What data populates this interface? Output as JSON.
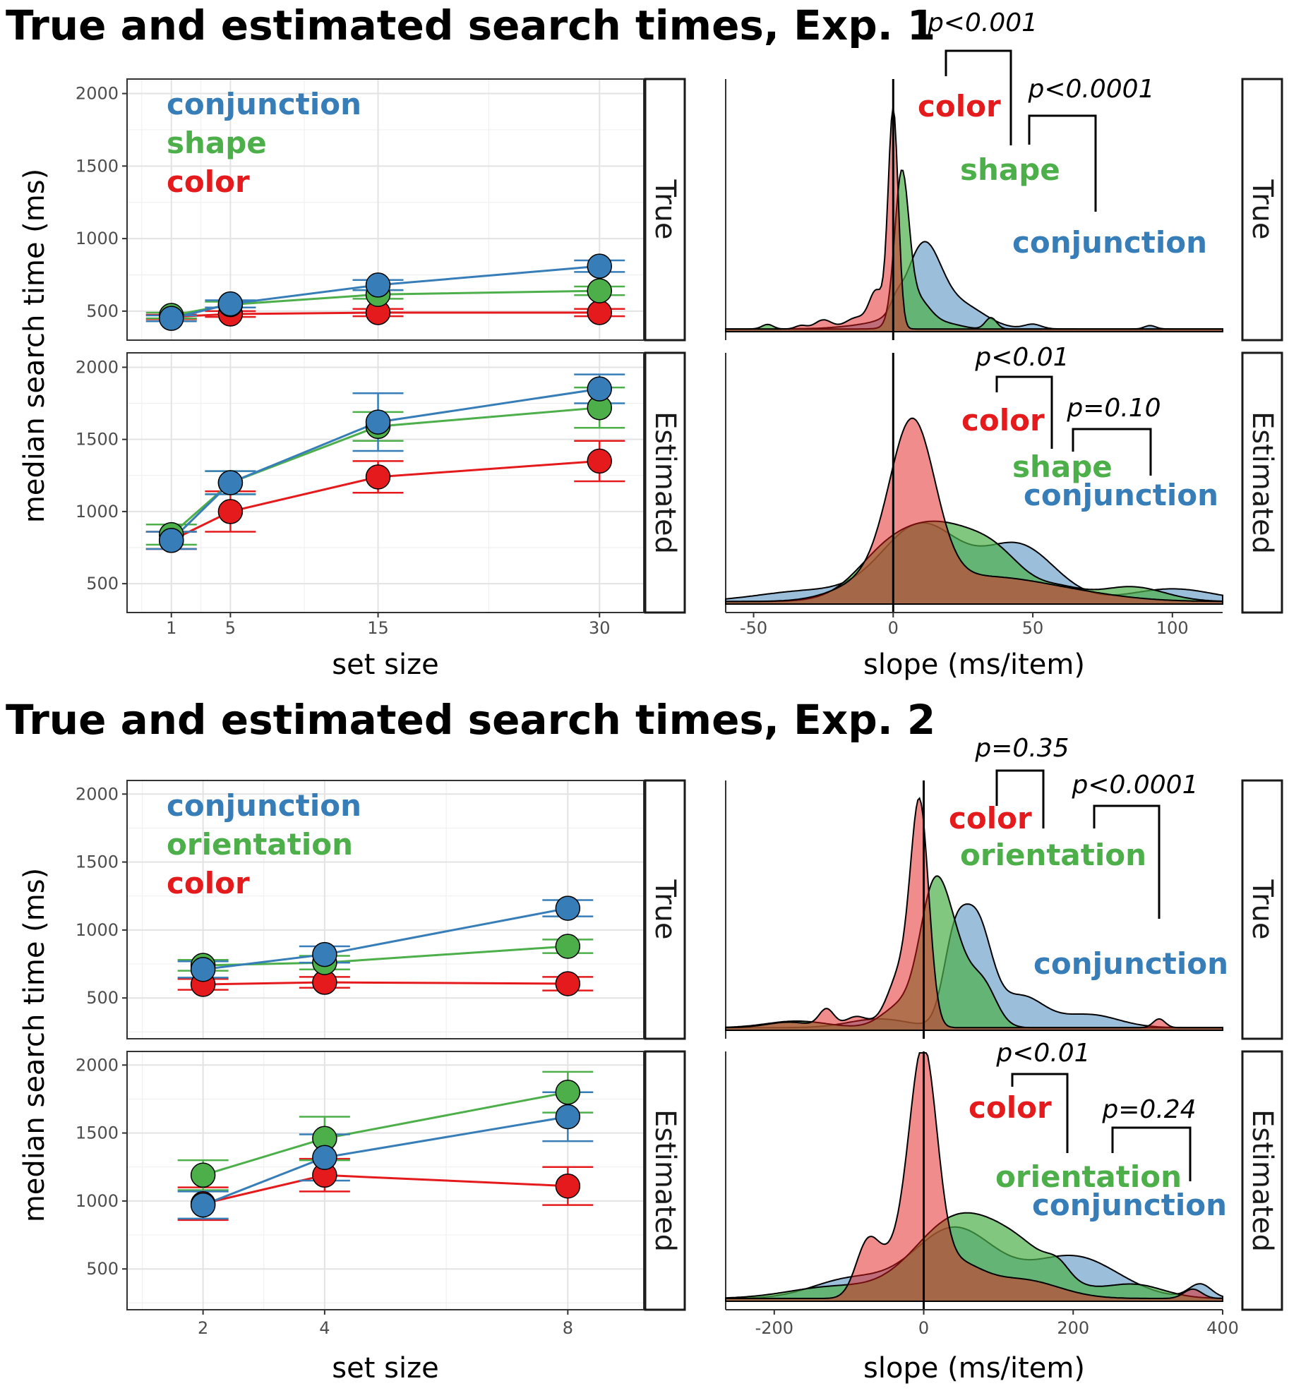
{
  "colors": {
    "conjunction": "#377eb8",
    "shape": "#4daf4a",
    "orientation": "#4daf4a",
    "color": "#e41a1c"
  },
  "chart_data": [
    {
      "type": "line",
      "title": "True and estimated search times, Exp. 1",
      "xlabel": "set size",
      "ylabel": "median search time (ms)",
      "x_ticks": [
        1,
        5,
        15,
        30
      ],
      "y_ticks": [
        500,
        1000,
        1500,
        2000
      ],
      "xlim": [
        -2,
        33
      ],
      "ylim": [
        300,
        2100
      ],
      "legend_placement": "top-left",
      "legend": [
        "conjunction",
        "shape",
        "color"
      ],
      "panels": [
        {
          "strip": "True",
          "x": [
            1,
            5,
            15,
            30
          ],
          "series": [
            {
              "name": "conjunction",
              "values": [
                450,
                550,
                680,
                810
              ],
              "err": [
                20,
                25,
                35,
                40
              ]
            },
            {
              "name": "shape",
              "values": [
                470,
                545,
                615,
                640
              ],
              "err": [
                20,
                20,
                30,
                30
              ]
            },
            {
              "name": "color",
              "values": [
                460,
                480,
                490,
                490
              ],
              "err": [
                15,
                20,
                25,
                25
              ]
            }
          ]
        },
        {
          "strip": "Estimated",
          "x": [
            1,
            5,
            15,
            30
          ],
          "series": [
            {
              "name": "conjunction",
              "values": [
                800,
                1200,
                1620,
                1850
              ],
              "err": [
                60,
                80,
                200,
                100
              ]
            },
            {
              "name": "shape",
              "values": [
                840,
                1200,
                1590,
                1720
              ],
              "err": [
                70,
                80,
                100,
                140
              ]
            },
            {
              "name": "color",
              "values": [
                800,
                1000,
                1240,
                1350
              ],
              "err": [
                60,
                140,
                110,
                140
              ]
            }
          ]
        }
      ]
    },
    {
      "type": "area",
      "xlabel": "slope (ms/item)",
      "x_ticks": [
        -50,
        0,
        50,
        100
      ],
      "xlim": [
        -60,
        118
      ],
      "legend": [
        "color",
        "shape",
        "conjunction"
      ],
      "panels": [
        {
          "strip": "True",
          "series": [
            {
              "name": "conjunction",
              "peaks": [
                [
                  1,
                  0.04,
                  2
                ],
                [
                  11,
                  0.32,
                  6
                ],
                [
                  25,
                  0.08,
                  8
                ],
                [
                  8,
                  0.05,
                  15
                ],
                [
                  50,
                  0.02,
                  3
                ],
                [
                  92,
                  0.015,
                  2
                ]
              ]
            },
            {
              "name": "shape",
              "peaks": [
                [
                  3,
                  0.62,
                  2.5
                ],
                [
                  8,
                  0.14,
                  5
                ],
                [
                  35,
                  0.05,
                  2
                ],
                [
                  -45,
                  0.02,
                  2
                ],
                [
                  20,
                  0.02,
                  5
                ]
              ]
            },
            {
              "name": "color",
              "peaks": [
                [
                  0,
                  0.97,
                  1.8
                ],
                [
                  -6,
                  0.16,
                  2.5
                ],
                [
                  -25,
                  0.04,
                  3
                ],
                [
                  -13,
                  0.05,
                  4
                ],
                [
                  -33,
                  0.015,
                  2
                ]
              ]
            }
          ],
          "annotations": [
            {
              "text": "p<0.001"
            },
            {
              "text": "p<0.0001"
            }
          ]
        },
        {
          "strip": "Estimated",
          "series": [
            {
              "name": "conjunction",
              "peaks": [
                [
                  10,
                  0.36,
                  14
                ],
                [
                  45,
                  0.26,
                  13
                ],
                [
                  -30,
                  0.05,
                  18
                ],
                [
                  100,
                  0.06,
                  15
                ]
              ]
            },
            {
              "name": "shape",
              "peaks": [
                [
                  15,
                  0.36,
                  17
                ],
                [
                  38,
                  0.12,
                  10
                ],
                [
                  -5,
                  0.08,
                  10
                ],
                [
                  85,
                  0.07,
                  12
                ],
                [
                  60,
                  0.05,
                  8
                ]
              ]
            },
            {
              "name": "color",
              "peaks": [
                [
                  7,
                  0.72,
                  8
                ],
                [
                  -3,
                  0.12,
                  14
                ],
                [
                  30,
                  0.1,
                  20
                ],
                [
                  60,
                  0.04,
                  20
                ]
              ]
            }
          ],
          "annotations": [
            {
              "text": "p<0.01"
            },
            {
              "text": "p=0.10"
            }
          ]
        }
      ]
    },
    {
      "type": "line",
      "title": "True and estimated search times, Exp. 2",
      "xlabel": "set size",
      "ylabel": "median search time (ms)",
      "x_ticks": [
        2,
        4,
        8
      ],
      "y_ticks": [
        500,
        1000,
        1500,
        2000
      ],
      "xlim": [
        0.75,
        9.25
      ],
      "ylim": [
        200,
        2100
      ],
      "legend_placement": "top-left",
      "legend": [
        "conjunction",
        "orientation",
        "color"
      ],
      "panels": [
        {
          "strip": "True",
          "x": [
            2,
            4,
            8
          ],
          "series": [
            {
              "name": "conjunction",
              "values": [
                710,
                820,
                1160
              ],
              "err": [
                60,
                60,
                60
              ]
            },
            {
              "name": "orientation",
              "values": [
                740,
                760,
                880
              ],
              "err": [
                40,
                50,
                50
              ]
            },
            {
              "name": "color",
              "values": [
                600,
                615,
                605
              ],
              "err": [
                40,
                40,
                50
              ]
            }
          ]
        },
        {
          "strip": "Estimated",
          "x": [
            2,
            4,
            8
          ],
          "series": [
            {
              "name": "conjunction",
              "values": [
                970,
                1320,
                1620
              ],
              "err": [
                100,
                170,
                180
              ]
            },
            {
              "name": "orientation",
              "values": [
                1190,
                1460,
                1800
              ],
              "err": [
                110,
                160,
                150
              ]
            },
            {
              "name": "color",
              "values": [
                980,
                1190,
                1110
              ],
              "err": [
                120,
                120,
                140
              ]
            }
          ]
        }
      ]
    },
    {
      "type": "area",
      "xlabel": "slope (ms/item)",
      "x_ticks": [
        -200,
        0,
        200,
        400
      ],
      "xlim": [
        -265,
        400
      ],
      "legend": [
        "color",
        "orientation",
        "conjunction"
      ],
      "panels": [
        {
          "strip": "True",
          "series": [
            {
              "name": "conjunction",
              "peaks": [
                [
                  40,
                  0.32,
                  15
                ],
                [
                  70,
                  0.48,
                  20
                ],
                [
                  130,
                  0.14,
                  30
                ],
                [
                  220,
                  0.06,
                  40
                ],
                [
                  -60,
                  0.04,
                  40
                ]
              ]
            },
            {
              "name": "orientation",
              "peaks": [
                [
                  10,
                  0.42,
                  18
                ],
                [
                  35,
                  0.4,
                  22
                ],
                [
                  -30,
                  0.1,
                  25
                ],
                [
                  80,
                  0.18,
                  18
                ],
                [
                  -170,
                  0.03,
                  40
                ]
              ]
            },
            {
              "name": "color",
              "peaks": [
                [
                  -5,
                  0.95,
                  12
                ],
                [
                  -30,
                  0.25,
                  18
                ],
                [
                  -130,
                  0.08,
                  10
                ],
                [
                  -90,
                  0.05,
                  15
                ],
                [
                  -180,
                  0.025,
                  30
                ],
                [
                  315,
                  0.04,
                  8
                ]
              ]
            }
          ],
          "annotations": [
            {
              "text": "p=0.35"
            },
            {
              "text": "p<0.0001"
            }
          ]
        },
        {
          "strip": "Estimated",
          "series": [
            {
              "name": "conjunction",
              "peaks": [
                [
                  40,
                  0.3,
                  55
                ],
                [
                  200,
                  0.18,
                  60
                ],
                [
                  -100,
                  0.08,
                  50
                ],
                [
                  370,
                  0.06,
                  15
                ]
              ]
            },
            {
              "name": "orientation",
              "peaks": [
                [
                  40,
                  0.32,
                  55
                ],
                [
                  130,
                  0.18,
                  50
                ],
                [
                  -120,
                  0.05,
                  60
                ],
                [
                  280,
                  0.06,
                  40
                ],
                [
                  180,
                  0.05,
                  15
                ]
              ]
            },
            {
              "name": "color",
              "peaks": [
                [
                  0,
                  0.92,
                  18
                ],
                [
                  -30,
                  0.2,
                  25
                ],
                [
                  -75,
                  0.22,
                  16
                ],
                [
                  40,
                  0.14,
                  35
                ],
                [
                  130,
                  0.08,
                  50
                ],
                [
                  360,
                  0.04,
                  12
                ]
              ]
            }
          ],
          "annotations": [
            {
              "text": "p<0.01"
            },
            {
              "text": "p=0.24"
            }
          ]
        }
      ]
    }
  ]
}
